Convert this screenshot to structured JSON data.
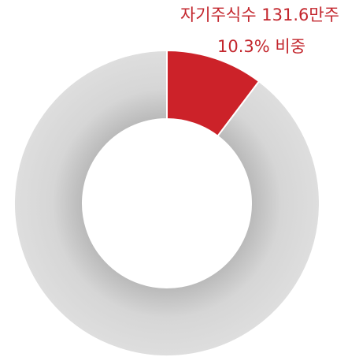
{
  "chart_data": {
    "type": "donut",
    "annotation": "자기주식수 131.6만주",
    "values": [
      10.3,
      89.7
    ],
    "value_labels": [
      "10.3% 비중",
      null
    ],
    "colors": [
      "#cc2229",
      "#dcdcdc"
    ]
  }
}
